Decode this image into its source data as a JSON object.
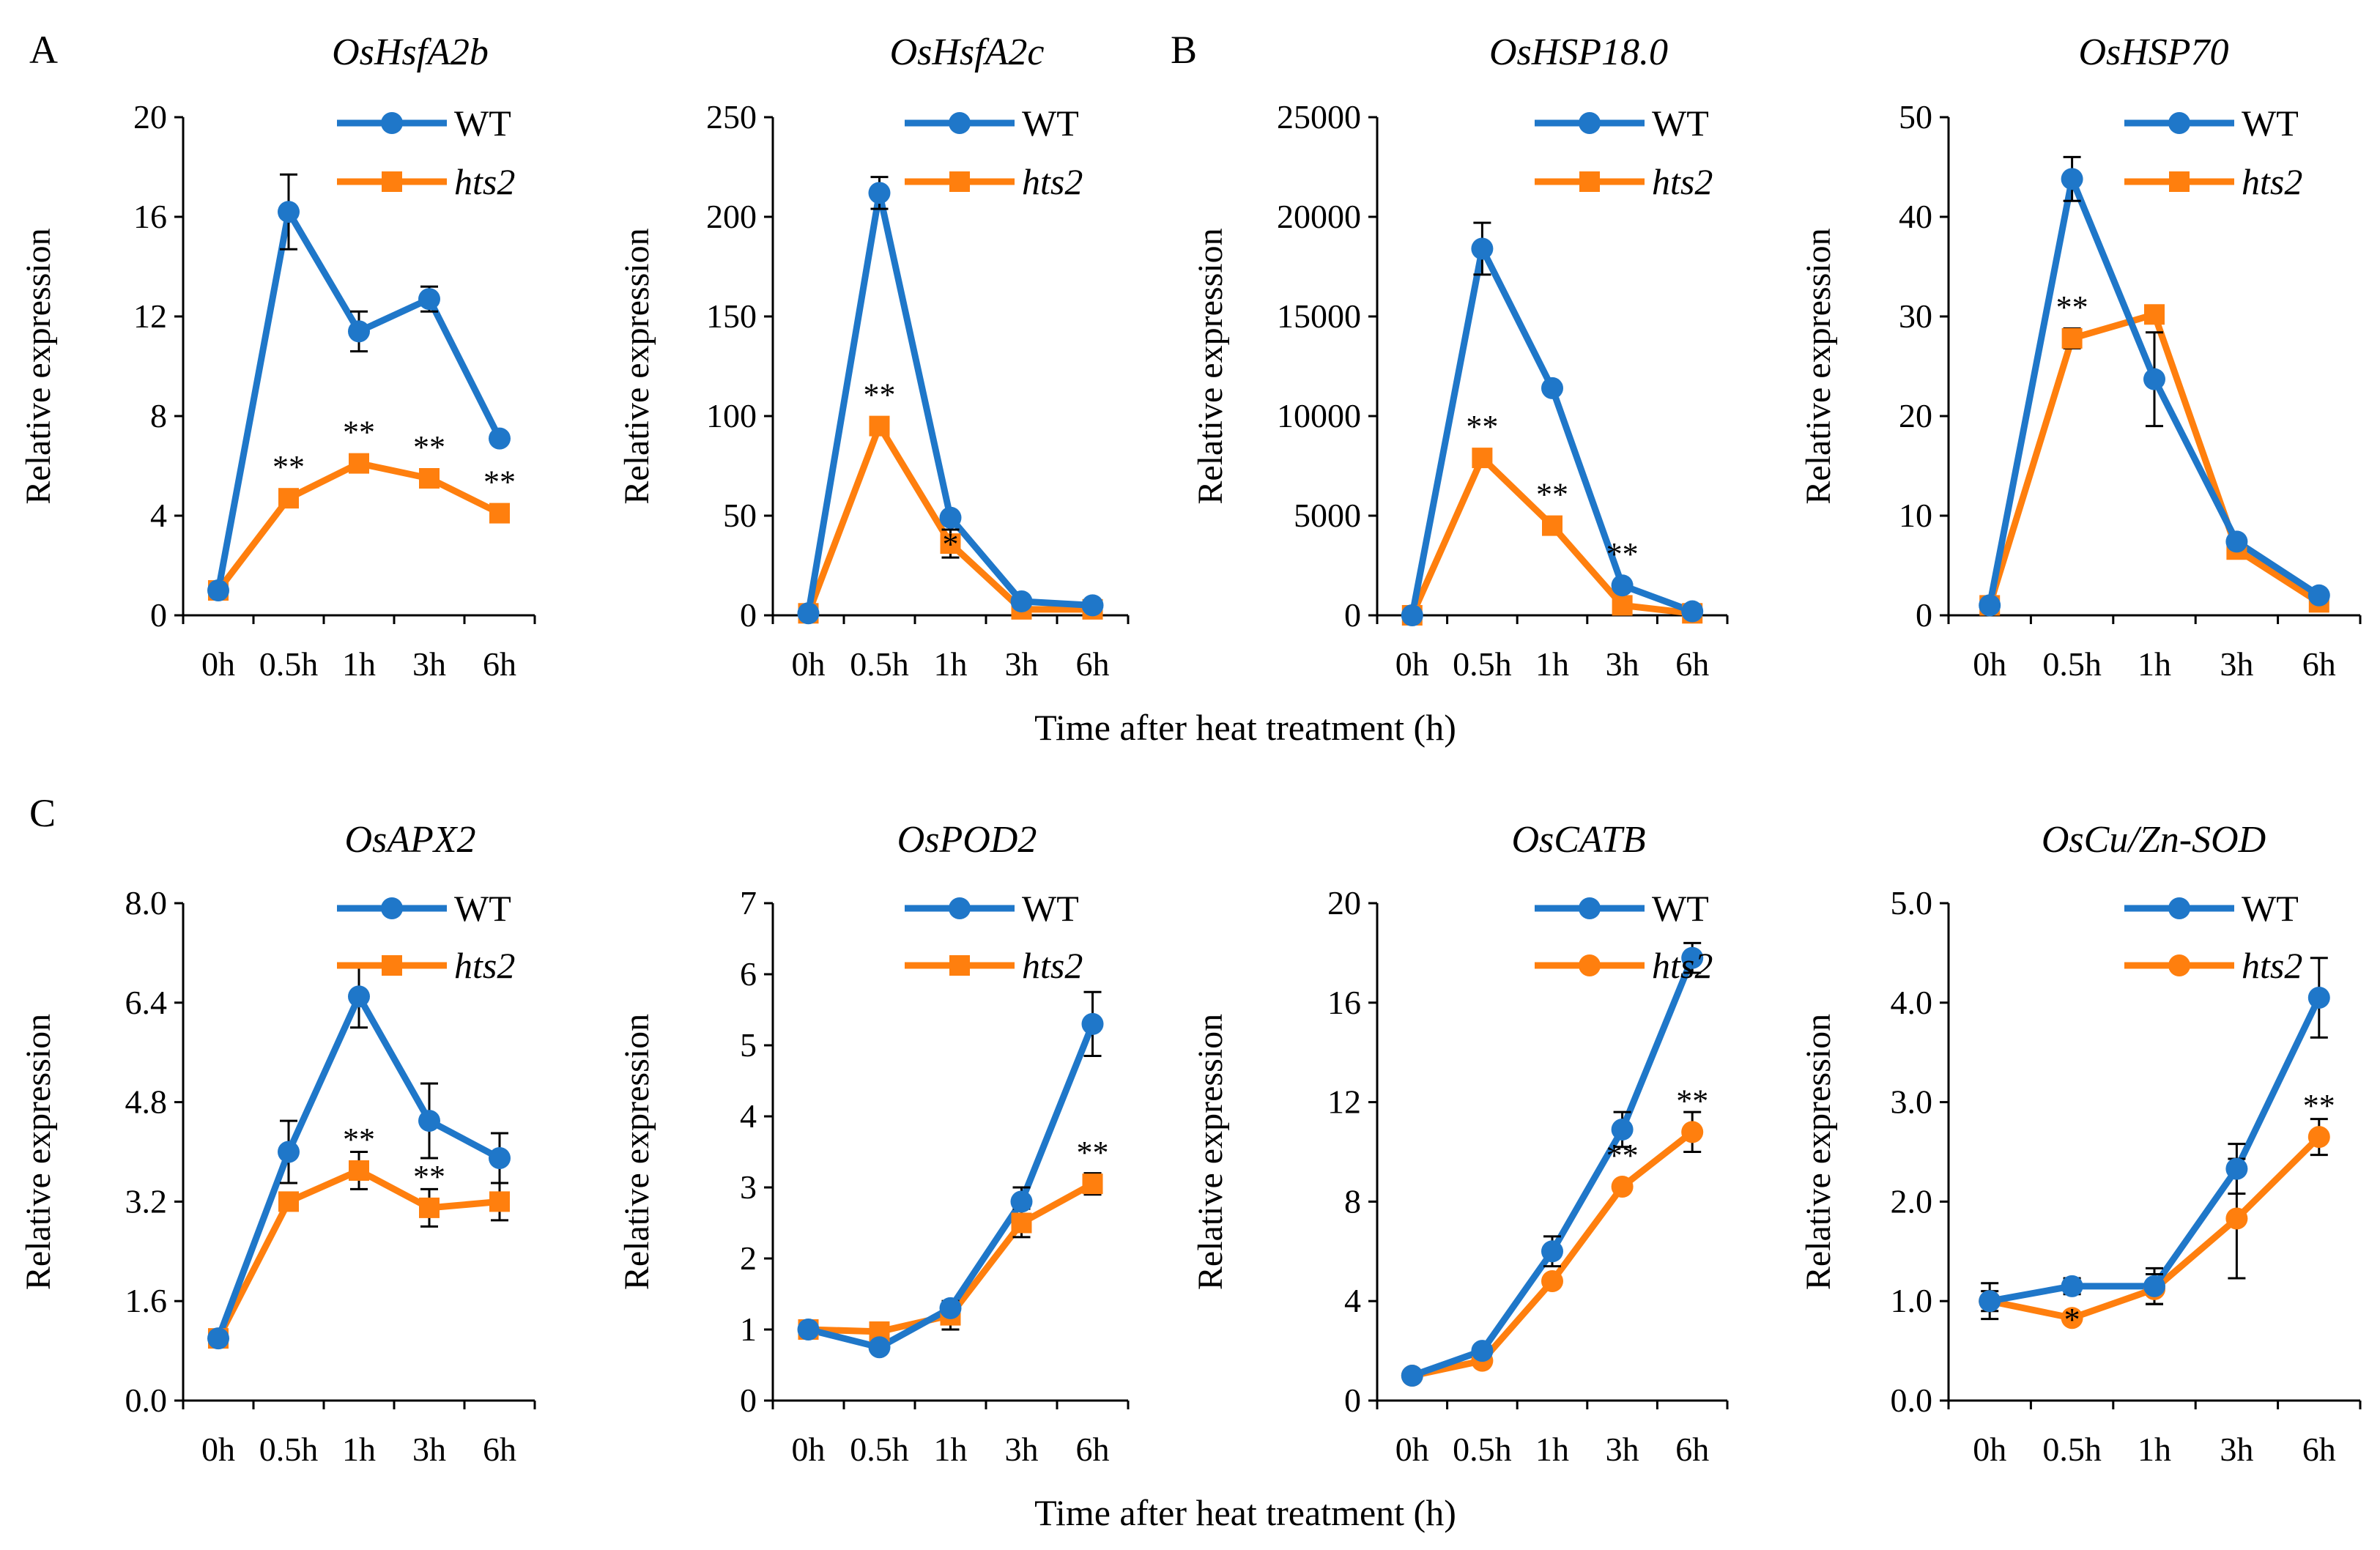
{
  "figure": {
    "xlabel_top": "Time after heat treatment (h)",
    "xlabel_bottom": "Time after heat treatment (h)",
    "panel_letters": [
      "A",
      "B",
      "C"
    ]
  },
  "colors": {
    "WT": "#1f77c9",
    "hts2": "#ff7f0e",
    "axis": "#000000"
  },
  "chart_data": [
    {
      "type": "line",
      "title": "OsHsfA2b",
      "ylabel": "Relative expression",
      "categories": [
        "0h",
        "0.5h",
        "1h",
        "3h",
        "6h"
      ],
      "ylim": [
        0,
        20
      ],
      "yticks": [
        "0",
        "4",
        "8",
        "12",
        "16",
        "20"
      ],
      "yticks_values": [
        0,
        4,
        8,
        12,
        16,
        20
      ],
      "series": [
        {
          "name": "WT",
          "italic": false,
          "marker": "circle",
          "values": [
            1.0,
            16.2,
            11.4,
            12.7,
            7.1
          ],
          "errors": [
            0,
            1.5,
            0.8,
            0.5,
            0
          ]
        },
        {
          "name": "hts2",
          "italic": true,
          "marker": "square",
          "values": [
            1.0,
            4.7,
            6.1,
            5.5,
            4.1
          ],
          "errors": [
            0,
            0,
            0,
            0,
            0
          ]
        }
      ],
      "annotations": [
        {
          "x": "0.5h",
          "y": 4.7,
          "text": "**"
        },
        {
          "x": "1h",
          "y": 6.1,
          "text": "**"
        },
        {
          "x": "3h",
          "y": 5.5,
          "text": "**"
        },
        {
          "x": "6h",
          "y": 4.1,
          "text": "**"
        }
      ]
    },
    {
      "type": "line",
      "title": "OsHsfA2c",
      "ylabel": "Relative expression",
      "categories": [
        "0h",
        "0.5h",
        "1h",
        "3h",
        "6h"
      ],
      "ylim": [
        0,
        250
      ],
      "yticks": [
        "0",
        "50",
        "100",
        "150",
        "200",
        "250"
      ],
      "yticks_values": [
        0,
        50,
        100,
        150,
        200,
        250
      ],
      "series": [
        {
          "name": "WT",
          "italic": false,
          "marker": "circle",
          "values": [
            1,
            212,
            49,
            7,
            5
          ],
          "errors": [
            0,
            8,
            0,
            0,
            0
          ]
        },
        {
          "name": "hts2",
          "italic": true,
          "marker": "square",
          "values": [
            1,
            95,
            36,
            3,
            3
          ],
          "errors": [
            0,
            0,
            7,
            0,
            0
          ]
        }
      ],
      "annotations": [
        {
          "x": "0.5h",
          "y": 95,
          "text": "**"
        },
        {
          "x": "1h",
          "y": 20,
          "text": "*"
        }
      ]
    },
    {
      "type": "line",
      "title": "OsHSP18.0",
      "ylabel": "Relative expression",
      "categories": [
        "0h",
        "0.5h",
        "1h",
        "3h",
        "6h"
      ],
      "ylim": [
        0,
        25000
      ],
      "yticks": [
        "0",
        "5000",
        "10000",
        "15000",
        "20000",
        "25000"
      ],
      "yticks_values": [
        0,
        5000,
        10000,
        15000,
        20000,
        25000
      ],
      "series": [
        {
          "name": "WT",
          "italic": false,
          "marker": "circle",
          "values": [
            1,
            18400,
            11400,
            1500,
            200
          ],
          "errors": [
            0,
            1300,
            0,
            0,
            0
          ]
        },
        {
          "name": "hts2",
          "italic": true,
          "marker": "square",
          "values": [
            1,
            7900,
            4500,
            500,
            100
          ],
          "errors": [
            0,
            0,
            0,
            0,
            0
          ]
        }
      ],
      "annotations": [
        {
          "x": "0.5h",
          "y": 7900,
          "text": "**"
        },
        {
          "x": "1h",
          "y": 4500,
          "text": "**"
        },
        {
          "x": "3h",
          "y": 1500,
          "text": "**"
        }
      ]
    },
    {
      "type": "line",
      "title": "OsHSP70",
      "ylabel": "Relative expression",
      "categories": [
        "0h",
        "0.5h",
        "1h",
        "3h",
        "6h"
      ],
      "ylim": [
        0,
        50
      ],
      "yticks": [
        "0",
        "10",
        "20",
        "30",
        "40",
        "50"
      ],
      "yticks_values": [
        0,
        10,
        20,
        30,
        40,
        50
      ],
      "series": [
        {
          "name": "WT",
          "italic": false,
          "marker": "circle",
          "values": [
            1.0,
            43.8,
            23.7,
            7.4,
            2.0
          ],
          "errors": [
            0,
            2.2,
            4.7,
            0,
            0
          ]
        },
        {
          "name": "hts2",
          "italic": true,
          "marker": "square",
          "values": [
            1.0,
            27.8,
            30.2,
            6.6,
            1.3
          ],
          "errors": [
            0,
            1.0,
            0,
            0,
            0
          ]
        }
      ],
      "annotations": [
        {
          "x": "0.5h",
          "y": 27.8,
          "text": "**"
        }
      ]
    },
    {
      "type": "line",
      "title": "OsAPX2",
      "ylabel": "Relative expression",
      "categories": [
        "0h",
        "0.5h",
        "1h",
        "3h",
        "6h"
      ],
      "ylim": [
        0,
        8.0
      ],
      "yticks": [
        "0.0",
        "1.6",
        "3.2",
        "4.8",
        "6.4",
        "8.0"
      ],
      "yticks_values": [
        0,
        1.6,
        3.2,
        4.8,
        6.4,
        8.0
      ],
      "series": [
        {
          "name": "WT",
          "italic": false,
          "marker": "circle",
          "values": [
            1.0,
            4.0,
            6.5,
            4.5,
            3.9
          ],
          "errors": [
            0,
            0.5,
            0.5,
            0.6,
            0.4
          ]
        },
        {
          "name": "hts2",
          "italic": true,
          "marker": "square",
          "values": [
            1.0,
            3.2,
            3.7,
            3.1,
            3.2
          ],
          "errors": [
            0,
            0,
            0.3,
            0.3,
            0.3
          ]
        }
      ],
      "annotations": [
        {
          "x": "1h",
          "y": 3.7,
          "text": "**"
        },
        {
          "x": "3h",
          "y": 3.1,
          "text": "**"
        }
      ]
    },
    {
      "type": "line",
      "title": "OsPOD2",
      "ylabel": "Relative expression",
      "categories": [
        "0h",
        "0.5h",
        "1h",
        "3h",
        "6h"
      ],
      "ylim": [
        0,
        7
      ],
      "yticks": [
        "0",
        "1",
        "2",
        "3",
        "4",
        "5",
        "6",
        "7"
      ],
      "yticks_values": [
        0,
        1,
        2,
        3,
        4,
        5,
        6,
        7
      ],
      "series": [
        {
          "name": "WT",
          "italic": false,
          "marker": "circle",
          "values": [
            1.0,
            0.75,
            1.3,
            2.8,
            5.3
          ],
          "errors": [
            0.1,
            0,
            0.1,
            0.2,
            0.45
          ]
        },
        {
          "name": "hts2",
          "italic": true,
          "marker": "square",
          "values": [
            1.0,
            0.97,
            1.2,
            2.5,
            3.05
          ],
          "errors": [
            0.1,
            0,
            0.2,
            0.2,
            0.15
          ]
        }
      ],
      "annotations": [
        {
          "x": "6h",
          "y": 3.05,
          "text": "**"
        }
      ]
    },
    {
      "type": "line",
      "title": "OsCATB",
      "ylabel": "Relative expression",
      "categories": [
        "0h",
        "0.5h",
        "1h",
        "3h",
        "6h"
      ],
      "ylim": [
        0,
        20
      ],
      "yticks": [
        "0",
        "4",
        "8",
        "12",
        "16",
        "20"
      ],
      "yticks_values": [
        0,
        4,
        8,
        12,
        16,
        20
      ],
      "series": [
        {
          "name": "WT",
          "italic": false,
          "marker": "circle",
          "values": [
            1.0,
            2.0,
            6.0,
            10.9,
            17.8
          ],
          "errors": [
            0,
            0,
            0.6,
            0.7,
            0.6
          ]
        },
        {
          "name": "hts2",
          "italic": true,
          "marker": "circle",
          "values": [
            1.0,
            1.6,
            4.8,
            8.6,
            10.8
          ],
          "errors": [
            0,
            0,
            0,
            0,
            0.8
          ]
        }
      ],
      "annotations": [
        {
          "x": "3h",
          "y": 8.6,
          "text": "**"
        },
        {
          "x": "6h",
          "y": 10.8,
          "text": "**"
        }
      ]
    },
    {
      "type": "line",
      "title": "OsCu/Zn-SOD",
      "ylabel": "Relative expression",
      "categories": [
        "0h",
        "0.5h",
        "1h",
        "3h",
        "6h"
      ],
      "ylim": [
        0,
        5.0
      ],
      "yticks": [
        "0.0",
        "1.0",
        "2.0",
        "3.0",
        "4.0",
        "5.0"
      ],
      "yticks_values": [
        0,
        1,
        2,
        3,
        4,
        5
      ],
      "series": [
        {
          "name": "WT",
          "italic": false,
          "marker": "circle",
          "values": [
            1.0,
            1.15,
            1.15,
            2.33,
            4.05
          ],
          "errors": [
            0.18,
            0.08,
            0.18,
            0.25,
            0.4
          ]
        },
        {
          "name": "hts2",
          "italic": true,
          "marker": "circle",
          "values": [
            1.0,
            0.83,
            1.12,
            1.83,
            2.65
          ],
          "errors": [
            0.1,
            0,
            0.15,
            0.6,
            0.18
          ]
        }
      ],
      "annotations": [
        {
          "x": "0.5h",
          "y": 0.5,
          "text": "*"
        },
        {
          "x": "6h",
          "y": 2.65,
          "text": "**"
        }
      ]
    }
  ]
}
